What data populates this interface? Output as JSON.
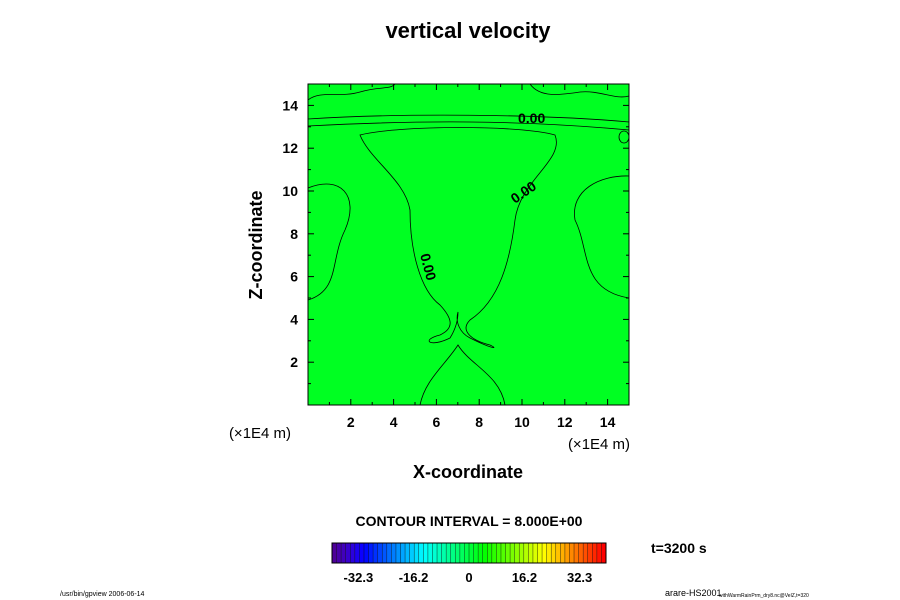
{
  "chart_data": {
    "type": "contour",
    "title": "vertical velocity",
    "xlabel": "X-coordinate",
    "ylabel": "Z-coordinate",
    "x_unit": "(×1E4 m)",
    "y_unit": "(×1E4 m)",
    "xlim": [
      0,
      15
    ],
    "ylim": [
      0,
      15
    ],
    "xticks": [
      2,
      4,
      6,
      8,
      10,
      12,
      14
    ],
    "yticks": [
      2,
      4,
      6,
      8,
      10,
      12,
      14
    ],
    "contour_labels": [
      "0.00",
      "0.00",
      "0.00"
    ],
    "contour_interval_text": "CONTOUR INTERVAL = 8.000E+00",
    "colorbar": {
      "ticks": [
        "-32.3",
        "-16.2",
        "0",
        "16.2",
        "32.3"
      ],
      "range": [
        -40,
        40
      ],
      "colormap": "rainbow"
    },
    "fill_color": "#00ff22",
    "time_label": "t=3200 s"
  },
  "footer": {
    "left": "/usr/bin/gpview 2006-06-14",
    "right_main": "arare-HS2001",
    "right_sub": "withWarmRainPrm_dry8.nc@VelZ,t=320"
  }
}
